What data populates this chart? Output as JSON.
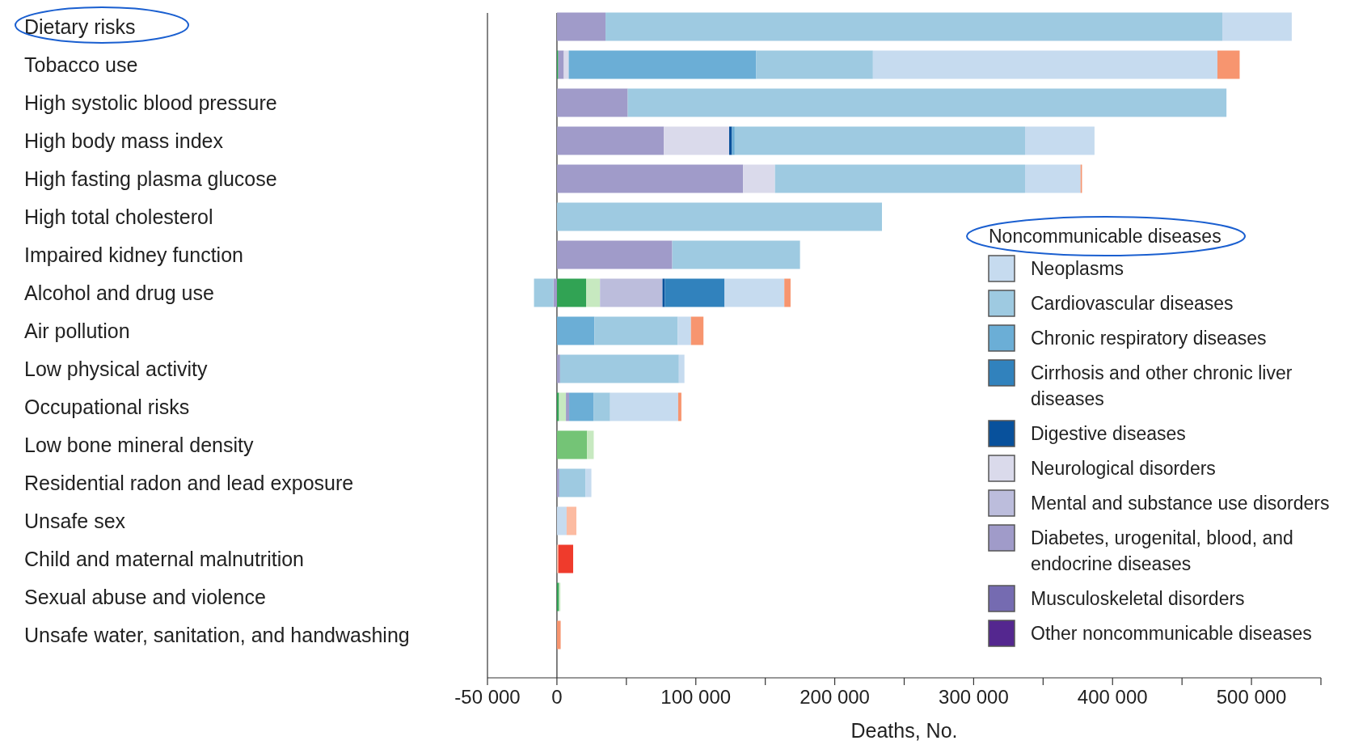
{
  "chart_data": {
    "type": "bar",
    "orientation": "horizontal",
    "stacked": true,
    "xlabel": "Deaths, No.",
    "legend_title": "Noncommunicable diseases",
    "legend": "right",
    "grid": false,
    "categories": [
      "Dietary risks",
      "Tobacco use",
      "High systolic blood pressure",
      "High body mass index",
      "High fasting plasma glucose",
      "High total cholesterol",
      "Impaired kidney function",
      "Alcohol and drug use",
      "Air pollution",
      "Low physical activity",
      "Occupational risks",
      "Low bone mineral density",
      "Residential radon and lead exposure",
      "Unsafe sex",
      "Child and maternal malnutrition",
      "Sexual abuse and violence",
      "Unsafe water, sanitation, and handwashing"
    ],
    "xlim": [
      -50000,
      550000
    ],
    "xticks": [
      {
        "value": -50000,
        "label": "-50 000"
      },
      {
        "value": 0,
        "label": "0"
      },
      {
        "value": 50000,
        "label": null
      },
      {
        "value": 100000,
        "label": "100 000"
      },
      {
        "value": 150000,
        "label": null
      },
      {
        "value": 200000,
        "label": "200 000"
      },
      {
        "value": 250000,
        "label": null
      },
      {
        "value": 300000,
        "label": "300 000"
      },
      {
        "value": 350000,
        "label": null
      },
      {
        "value": 400000,
        "label": "400 000"
      },
      {
        "value": 450000,
        "label": null
      },
      {
        "value": 500000,
        "label": "500 000"
      },
      {
        "value": 550000,
        "label": null
      }
    ],
    "ref_lines": [
      {
        "axis": "x",
        "value": 0,
        "color": "#555555"
      }
    ],
    "series": [
      {
        "color": "#31a354",
        "values": [
          null,
          1000,
          null,
          null,
          null,
          null,
          null,
          21000,
          null,
          null,
          1500,
          null,
          null,
          null,
          null,
          1500,
          null
        ]
      },
      {
        "color": "#74c476",
        "values": [
          null,
          null,
          null,
          null,
          null,
          null,
          null,
          null,
          null,
          null,
          null,
          21700,
          null,
          null,
          null,
          null,
          null
        ]
      },
      {
        "color": "#c7e9c0",
        "values": [
          null,
          null,
          null,
          null,
          null,
          null,
          null,
          10000,
          null,
          null,
          5000,
          4800,
          null,
          null,
          null,
          1000,
          null
        ]
      },
      {
        "name": "Other noncommunicable diseases",
        "color": "#54278f",
        "values": [
          null,
          null,
          null,
          null,
          null,
          null,
          null,
          null,
          null,
          null,
          null,
          null,
          null,
          null,
          null,
          null,
          null
        ]
      },
      {
        "name": "Musculoskeletal disorders",
        "color": "#756bb1",
        "values": [
          null,
          null,
          null,
          null,
          null,
          null,
          null,
          null,
          null,
          null,
          null,
          null,
          null,
          null,
          null,
          null,
          null
        ]
      },
      {
        "name": "Diabetes, urogenital, blood, and endocrine diseases",
        "color": "#a09bc9",
        "values": [
          35000,
          4000,
          51000,
          77000,
          134000,
          null,
          83000,
          -2500,
          null,
          2300,
          2300,
          null,
          1700,
          null,
          null,
          null,
          null
        ]
      },
      {
        "name": "Mental and substance use disorders",
        "color": "#bcbddc",
        "values": [
          null,
          null,
          null,
          null,
          null,
          null,
          null,
          45000,
          null,
          null,
          null,
          null,
          null,
          null,
          null,
          null,
          null
        ]
      },
      {
        "name": "Neurological disorders",
        "color": "#dadaeb",
        "values": [
          null,
          3500,
          null,
          47000,
          23000,
          null,
          null,
          null,
          null,
          null,
          null,
          null,
          null,
          null,
          null,
          null,
          null
        ]
      },
      {
        "name": "Digestive diseases",
        "color": "#08519c",
        "values": [
          null,
          null,
          null,
          2000,
          null,
          null,
          null,
          1700,
          null,
          null,
          null,
          null,
          null,
          null,
          null,
          null,
          null
        ]
      },
      {
        "name": "Cirrhosis and other chronic liver diseases",
        "color": "#3182bd",
        "values": [
          null,
          null,
          null,
          null,
          null,
          null,
          null,
          43000,
          null,
          null,
          null,
          null,
          null,
          null,
          null,
          null,
          null
        ]
      },
      {
        "name": "Chronic respiratory diseases",
        "color": "#6baed6",
        "values": [
          null,
          135000,
          null,
          2000,
          null,
          null,
          null,
          null,
          27000,
          null,
          17500,
          null,
          null,
          null,
          null,
          null,
          null
        ]
      },
      {
        "name": "Cardiovascular diseases",
        "color": "#9ecae1",
        "values": [
          444000,
          84000,
          431000,
          209000,
          180000,
          234000,
          92000,
          -14000,
          60000,
          85500,
          12000,
          null,
          18800,
          null,
          null,
          null,
          null
        ]
      },
      {
        "name": "Neoplasms",
        "color": "#c6dbef",
        "values": [
          50000,
          248000,
          null,
          50000,
          40000,
          null,
          null,
          43000,
          9500,
          4000,
          49000,
          null,
          4300,
          7000,
          null,
          null,
          null
        ]
      },
      {
        "color": "#f7956f",
        "values": [
          null,
          16000,
          null,
          null,
          1000,
          null,
          null,
          4500,
          9000,
          null,
          2300,
          null,
          null,
          null,
          null,
          null,
          2700
        ]
      },
      {
        "color": "#fcbba1",
        "values": [
          null,
          null,
          null,
          null,
          null,
          null,
          null,
          null,
          null,
          null,
          null,
          null,
          null,
          7000,
          1000,
          null,
          null
        ]
      },
      {
        "color": "#ef3b2c",
        "values": [
          null,
          null,
          null,
          null,
          null,
          null,
          null,
          null,
          null,
          null,
          null,
          null,
          null,
          null,
          10700,
          null,
          null
        ]
      }
    ]
  }
}
